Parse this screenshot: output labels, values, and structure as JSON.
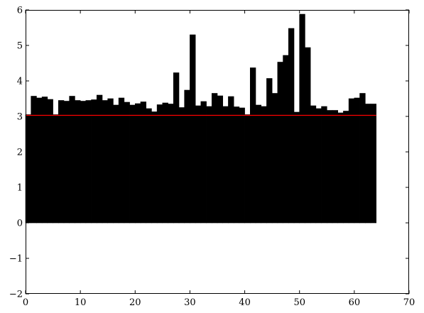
{
  "chart_data": {
    "type": "bar",
    "title": "",
    "xlabel": "",
    "ylabel": "",
    "xlim": [
      0,
      70
    ],
    "ylim": [
      -2,
      6
    ],
    "grid": false,
    "x_ticks": [
      0,
      10,
      20,
      30,
      40,
      50,
      60,
      70
    ],
    "y_ticks": [
      -2,
      -1,
      0,
      1,
      2,
      3,
      4,
      5,
      6
    ],
    "x_tick_labels": [
      "0",
      "10",
      "20",
      "30",
      "40",
      "50",
      "60",
      "70"
    ],
    "y_tick_labels": [
      "−2",
      "−1",
      "0",
      "1",
      "2",
      "3",
      "4",
      "5",
      "6"
    ],
    "bar_color": "#000000",
    "bar_width": 1,
    "x": [
      0,
      1,
      2,
      3,
      4,
      5,
      6,
      7,
      8,
      9,
      10,
      11,
      12,
      13,
      14,
      15,
      16,
      17,
      18,
      19,
      20,
      21,
      22,
      23,
      24,
      25,
      26,
      27,
      28,
      29,
      30,
      31,
      32,
      33,
      34,
      35,
      36,
      37,
      38,
      39,
      40,
      41,
      42,
      43,
      44,
      45,
      46,
      47,
      48,
      49,
      50,
      51,
      52,
      53,
      54,
      55,
      56,
      57,
      58,
      59,
      60,
      61,
      62,
      63
    ],
    "values": [
      3.05,
      3.57,
      3.52,
      3.55,
      3.48,
      3.05,
      3.45,
      3.43,
      3.57,
      3.45,
      3.43,
      3.45,
      3.47,
      3.6,
      3.45,
      3.5,
      3.32,
      3.52,
      3.4,
      3.32,
      3.36,
      3.41,
      3.22,
      3.13,
      3.33,
      3.38,
      3.35,
      4.23,
      3.25,
      3.74,
      5.3,
      3.3,
      3.42,
      3.28,
      3.65,
      3.58,
      3.28,
      3.56,
      3.27,
      3.24,
      3.05,
      4.37,
      3.32,
      3.28,
      4.07,
      3.65,
      4.53,
      4.72,
      5.48,
      3.12,
      5.88,
      4.94,
      3.3,
      3.22,
      3.28,
      3.17,
      3.17,
      3.1,
      3.15,
      3.5,
      3.52,
      3.65,
      3.35,
      3.35
    ],
    "reference_line": {
      "y": 3.03,
      "x_range": [
        0,
        64
      ],
      "color": "#ff0000"
    }
  }
}
